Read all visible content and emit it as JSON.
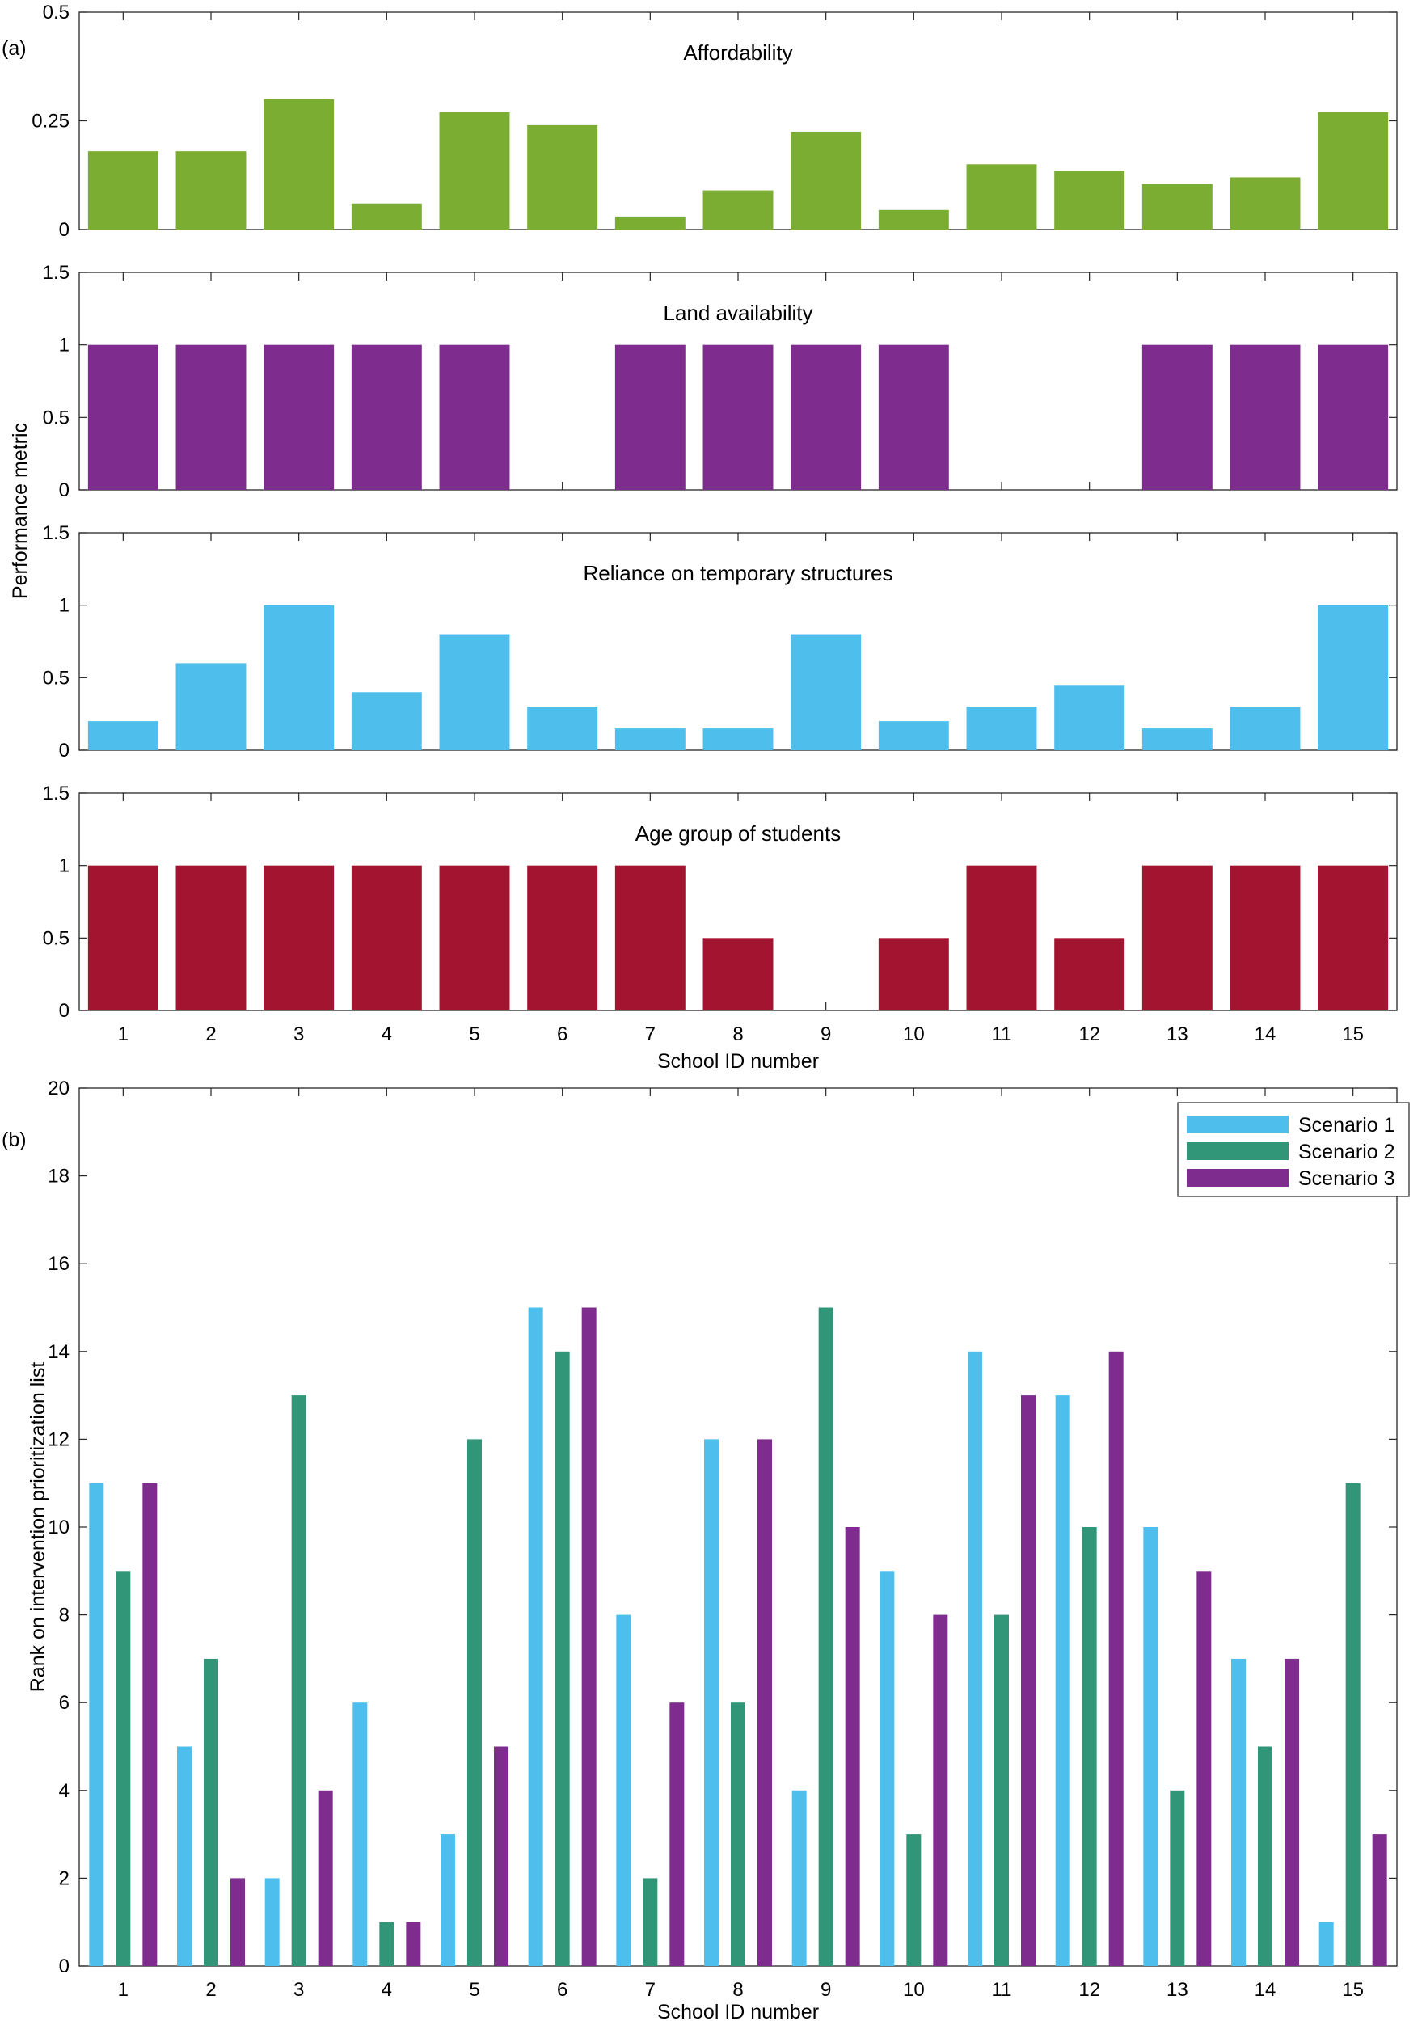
{
  "panel_labels": {
    "a": "(a)",
    "b": "(b)"
  },
  "colors": {
    "affordability": "#7aad32",
    "land": "#7e2d8e",
    "reliance": "#4ebeed",
    "age": "#a2142f",
    "scenario1": "#4ebeed",
    "scenario2": "#319577",
    "scenario3": "#7e2d8e"
  },
  "chart_data": [
    {
      "type": "bar",
      "panel": "a",
      "title": "Affordability",
      "categories": [
        "1",
        "2",
        "3",
        "4",
        "5",
        "6",
        "7",
        "8",
        "9",
        "10",
        "11",
        "12",
        "13",
        "14",
        "15"
      ],
      "values": [
        0.18,
        0.18,
        0.3,
        0.06,
        0.27,
        0.24,
        0.03,
        0.09,
        0.225,
        0.045,
        0.15,
        0.135,
        0.105,
        0.12,
        0.27
      ],
      "ylim": [
        0,
        0.5
      ],
      "yticks": [
        "0",
        "0.25",
        "0.5"
      ],
      "color_key": "affordability"
    },
    {
      "type": "bar",
      "panel": "a",
      "title": "Land availability",
      "categories": [
        "1",
        "2",
        "3",
        "4",
        "5",
        "6",
        "7",
        "8",
        "9",
        "10",
        "11",
        "12",
        "13",
        "14",
        "15"
      ],
      "values": [
        1,
        1,
        1,
        1,
        1,
        0,
        1,
        1,
        1,
        1,
        0,
        0,
        1,
        1,
        1
      ],
      "ylim": [
        0,
        1.5
      ],
      "yticks": [
        "0",
        "0.5",
        "1",
        "1.5"
      ],
      "color_key": "land"
    },
    {
      "type": "bar",
      "panel": "a",
      "title": "Reliance on temporary structures",
      "categories": [
        "1",
        "2",
        "3",
        "4",
        "5",
        "6",
        "7",
        "8",
        "9",
        "10",
        "11",
        "12",
        "13",
        "14",
        "15"
      ],
      "values": [
        0.2,
        0.6,
        1.0,
        0.4,
        0.8,
        0.3,
        0.15,
        0.15,
        0.8,
        0.2,
        0.3,
        0.45,
        0.15,
        0.3,
        1.0
      ],
      "ylim": [
        0,
        1.5
      ],
      "yticks": [
        "0",
        "0.5",
        "1",
        "1.5"
      ],
      "color_key": "reliance"
    },
    {
      "type": "bar",
      "panel": "a",
      "title": "Age group of students",
      "categories": [
        "1",
        "2",
        "3",
        "4",
        "5",
        "6",
        "7",
        "8",
        "9",
        "10",
        "11",
        "12",
        "13",
        "14",
        "15"
      ],
      "values": [
        1,
        1,
        1,
        1,
        1,
        1,
        1,
        0.5,
        0,
        0.5,
        1,
        0.5,
        1,
        1,
        1
      ],
      "ylim": [
        0,
        1.5
      ],
      "yticks": [
        "0",
        "0.5",
        "1",
        "1.5"
      ],
      "color_key": "age",
      "xlabel": "School ID number"
    },
    {
      "type": "bar",
      "panel": "b",
      "title": "",
      "categories": [
        "1",
        "2",
        "3",
        "4",
        "5",
        "6",
        "7",
        "8",
        "9",
        "10",
        "11",
        "12",
        "13",
        "14",
        "15"
      ],
      "series": [
        {
          "name": "Scenario 1",
          "color_key": "scenario1",
          "values": [
            11,
            5,
            2,
            6,
            3,
            15,
            8,
            12,
            4,
            9,
            14,
            13,
            10,
            7,
            1
          ]
        },
        {
          "name": "Scenario 2",
          "color_key": "scenario2",
          "values": [
            9,
            7,
            13,
            1,
            12,
            14,
            2,
            6,
            15,
            3,
            8,
            10,
            4,
            5,
            11
          ]
        },
        {
          "name": "Scenario 3",
          "color_key": "scenario3",
          "values": [
            11,
            2,
            4,
            1,
            5,
            15,
            6,
            12,
            10,
            8,
            13,
            14,
            9,
            7,
            3
          ]
        }
      ],
      "ylim": [
        0,
        20
      ],
      "yticks": [
        "0",
        "2",
        "4",
        "6",
        "8",
        "10",
        "12",
        "14",
        "16",
        "18",
        "20"
      ],
      "xlabel": "School ID number",
      "ylabel": "Rank on intervention prioritization list",
      "legend": "top-right"
    }
  ],
  "shared_ylabel_a": "Performance metric"
}
